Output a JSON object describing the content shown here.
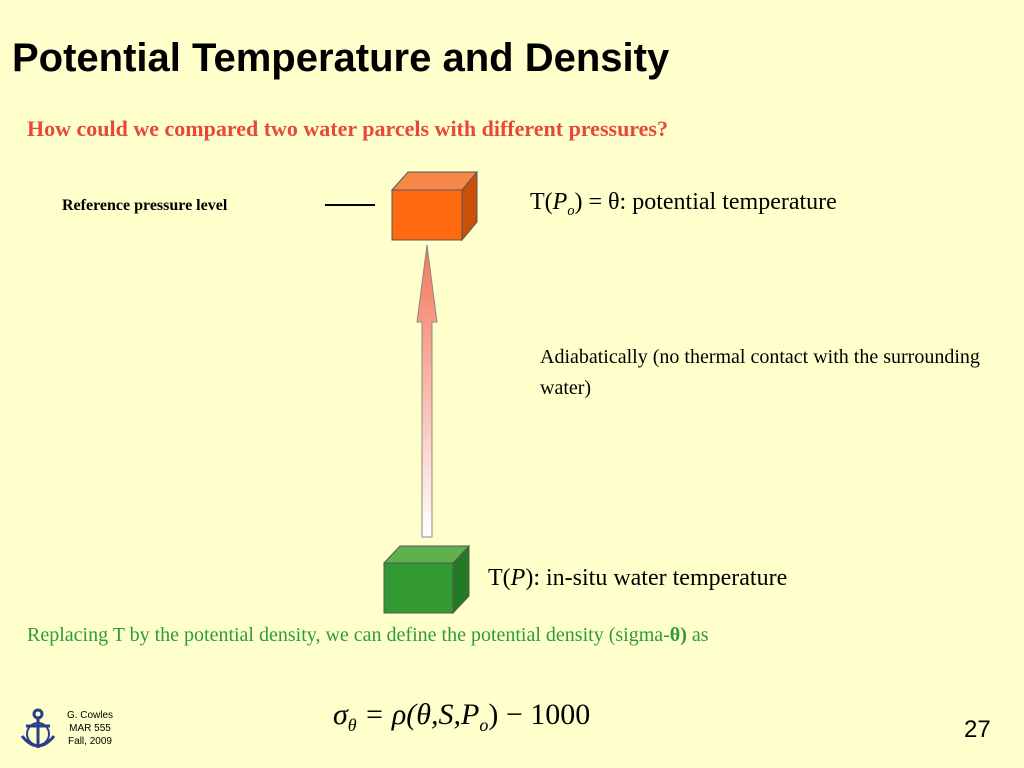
{
  "title": "Potential Temperature and Density",
  "question": "How could we compared two water parcels with different pressures?",
  "reference_label": "Reference pressure level",
  "potential_temp": {
    "prefix": "T(",
    "variable": "P",
    "subscript": "o",
    "suffix": ") = θ: potential temperature"
  },
  "adiabatic_note": "Adiabatically (no thermal contact with the surrounding water)",
  "insitu_temp": {
    "prefix": "T(",
    "variable": "P",
    "suffix": "): in-situ water temperature"
  },
  "density_note": {
    "text": "Replacing T by the potential density, we can define the potential density (sigma-",
    "symbol": "θ)",
    "suffix": " as"
  },
  "equation": {
    "sigma": "σ",
    "sigma_sub": "θ",
    "middle": " = ρ(θ,S,P",
    "p_sub": "o",
    "end": ") − 1000"
  },
  "footer": {
    "author": "G. Cowles",
    "course": "MAR 555",
    "term": "Fall, 2009",
    "page": "27"
  }
}
